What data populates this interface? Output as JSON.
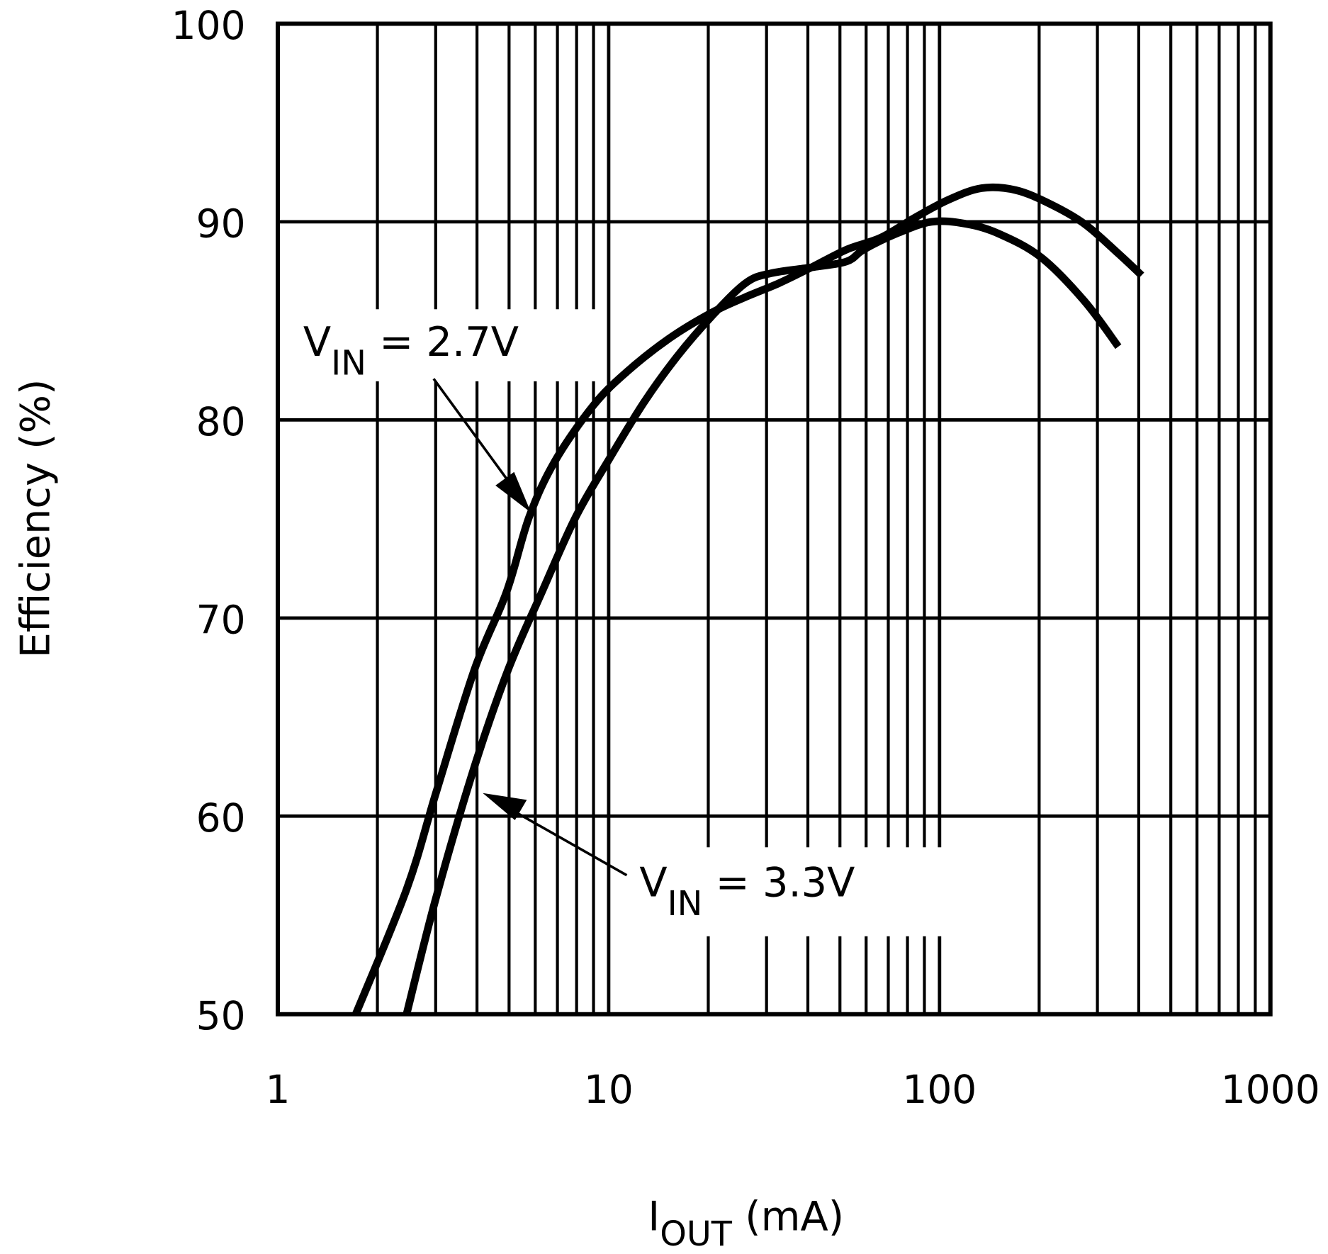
{
  "chart_data": {
    "type": "line",
    "title": "",
    "xlabel": {
      "main": "I",
      "sub": "OUT",
      "unit": " (mA)"
    },
    "ylabel": "Efficiency (%)",
    "x_scale": "log",
    "xlim": [
      1,
      1000
    ],
    "ylim": [
      50,
      100
    ],
    "grid": true,
    "x_ticks": [
      "1",
      "10",
      "100",
      "1000"
    ],
    "x_tick_values": [
      1,
      10,
      100,
      1000
    ],
    "y_ticks": [
      "50",
      "60",
      "70",
      "80",
      "90",
      "100"
    ],
    "y_tick_values": [
      50,
      60,
      70,
      80,
      90,
      100
    ],
    "line_color": "#000000",
    "series": [
      {
        "name": "VIN = 2.7V",
        "label": {
          "main": "V",
          "sub": "IN",
          "rest": " = 2.7V"
        },
        "x": [
          1.72,
          2.45,
          3.01,
          3.93,
          4.91,
          5.75,
          6.87,
          8.96,
          11.3,
          15.2,
          20.4,
          25.9,
          32.7,
          41,
          52.4,
          66.4,
          84,
          106,
          134,
          170,
          216,
          274,
          347,
          408
        ],
        "y": [
          50,
          56.3,
          61.2,
          67.4,
          71.3,
          75.1,
          77.9,
          80.7,
          82.4,
          84.1,
          85.4,
          86.2,
          86.9,
          87.7,
          88.6,
          89.2,
          90.2,
          91.1,
          91.7,
          91.6,
          90.9,
          89.9,
          88.4,
          87.3
        ]
      },
      {
        "name": "VIN = 3.3V",
        "label": {
          "main": "V",
          "sub": "IN",
          "rest": " = 3.3V"
        },
        "x": [
          2.45,
          3.01,
          3.93,
          4.97,
          6.28,
          7.95,
          10.1,
          12.8,
          16.1,
          20.4,
          25.9,
          30.9,
          41,
          52.4,
          59,
          74,
          94.5,
          120,
          151,
          203,
          274,
          347
        ],
        "y": [
          50,
          55.9,
          62.5,
          67.4,
          71.3,
          75.1,
          78.1,
          80.9,
          83.2,
          85.2,
          86.9,
          87.4,
          87.7,
          88.0,
          88.6,
          89.4,
          90.0,
          89.9,
          89.4,
          88.2,
          86.0,
          83.7
        ]
      }
    ]
  }
}
